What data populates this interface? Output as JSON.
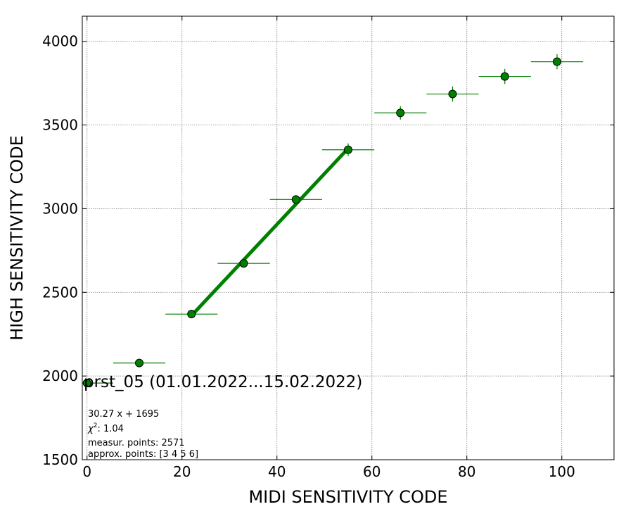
{
  "chart_data": {
    "type": "scatter",
    "title": "prst_05 (01.01.2022...15.02.2022)",
    "xlabel": "MIDI SENSITIVITY CODE",
    "ylabel": "HIGH SENSITIVITY CODE",
    "xlim": [
      -1,
      111
    ],
    "ylim": [
      1500,
      4150
    ],
    "x_ticks": [
      0,
      20,
      40,
      60,
      80,
      100
    ],
    "y_ticks": [
      1500,
      2000,
      2500,
      3000,
      3500,
      4000
    ],
    "grid": true,
    "series": [
      {
        "x": [
          0,
          11,
          22,
          33,
          44,
          55,
          66,
          77,
          88,
          99
        ],
        "y": [
          1958,
          2078,
          2370,
          2673,
          3055,
          3352,
          3572,
          3685,
          3790,
          3878
        ],
        "x_err": 5.5,
        "y_err": [
          15,
          15,
          18,
          25,
          25,
          38,
          40,
          45,
          45,
          45
        ]
      }
    ],
    "fit": {
      "slope": 30.27,
      "intercept": 1695,
      "x_range": [
        22,
        55
      ]
    },
    "annotations": {
      "equation": "30.27 x + 1695",
      "chi2_label": "χ",
      "chi2_sup": "2",
      "chi2_value": ": 1.04",
      "measur_points": "measur. points: 2571",
      "approx_points": "approx. points: [3 4 5 6]"
    },
    "colors": {
      "marker": "#008000",
      "line": "#008000",
      "grid": "#808080"
    }
  }
}
